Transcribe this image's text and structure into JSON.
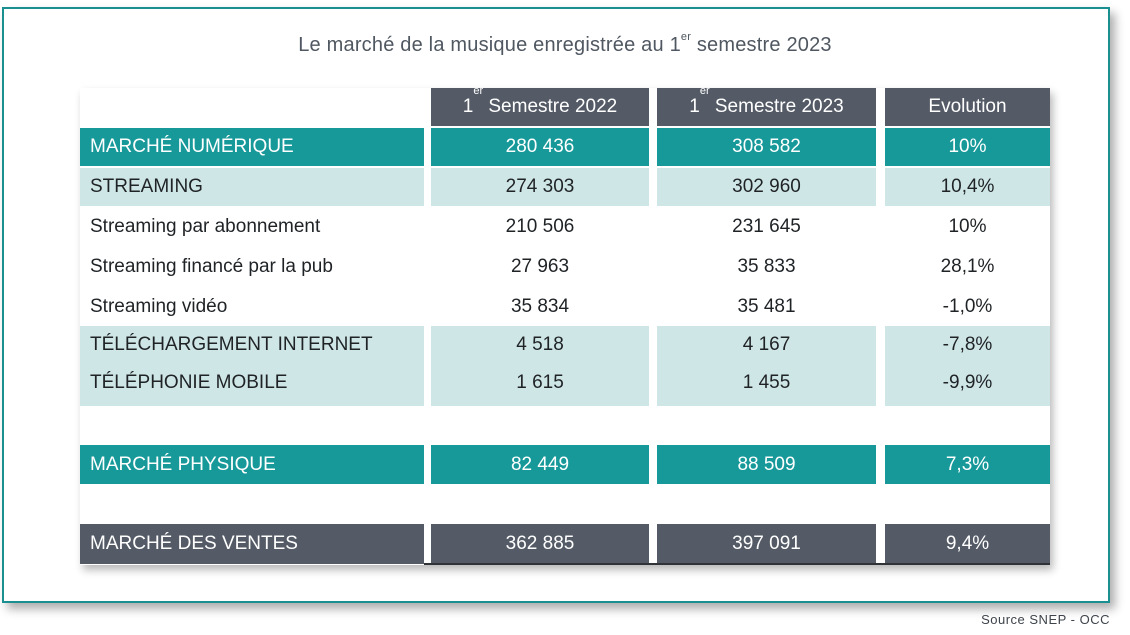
{
  "title": {
    "pre": "Le marché de la musique enregistrée au 1",
    "sup": "er",
    "post": " semestre 2023"
  },
  "columns": [
    {
      "pre": "1",
      "sup": "er",
      "post": " Semestre 2022"
    },
    {
      "pre": "1",
      "sup": "er",
      "post": " Semestre 2023"
    },
    {
      "pre": "Evolution",
      "sup": "",
      "post": ""
    }
  ],
  "rows": [
    {
      "label": "MARCHÉ NUMÉRIQUE",
      "v2022": "280 436",
      "v2023": "308 582",
      "evolution": "10%"
    },
    {
      "label": "STREAMING",
      "v2022": "274 303",
      "v2023": "302 960",
      "evolution": "10,4%"
    },
    {
      "label": "Streaming par abonnement",
      "v2022": "210 506",
      "v2023": "231 645",
      "evolution": "10%"
    },
    {
      "label": "Streaming financé par la pub",
      "v2022": "27 963",
      "v2023": "35 833",
      "evolution": "28,1%"
    },
    {
      "label": "Streaming vidéo",
      "v2022": "35 834",
      "v2023": "35 481",
      "evolution": "-1,0%"
    },
    {
      "label": "TÉLÉCHARGEMENT INTERNET",
      "v2022": "4 518",
      "v2023": "4 167",
      "evolution": "-7,8%"
    },
    {
      "label": "TÉLÉPHONIE MOBILE",
      "v2022": "1 615",
      "v2023": "1 455",
      "evolution": "-9,9%"
    },
    {
      "label": "MARCHÉ PHYSIQUE",
      "v2022": "82 449",
      "v2023": "88 509",
      "evolution": "7,3%"
    },
    {
      "label": "MARCHÉ DES VENTES",
      "v2022": "362 885",
      "v2023": "397 091",
      "evolution": "9,4%"
    }
  ],
  "source": "Source SNEP - OCC",
  "colors": {
    "teal": "#17999a",
    "light_teal": "#cfe6e7",
    "slate": "#545b66",
    "frame": "#1a8f90"
  }
}
